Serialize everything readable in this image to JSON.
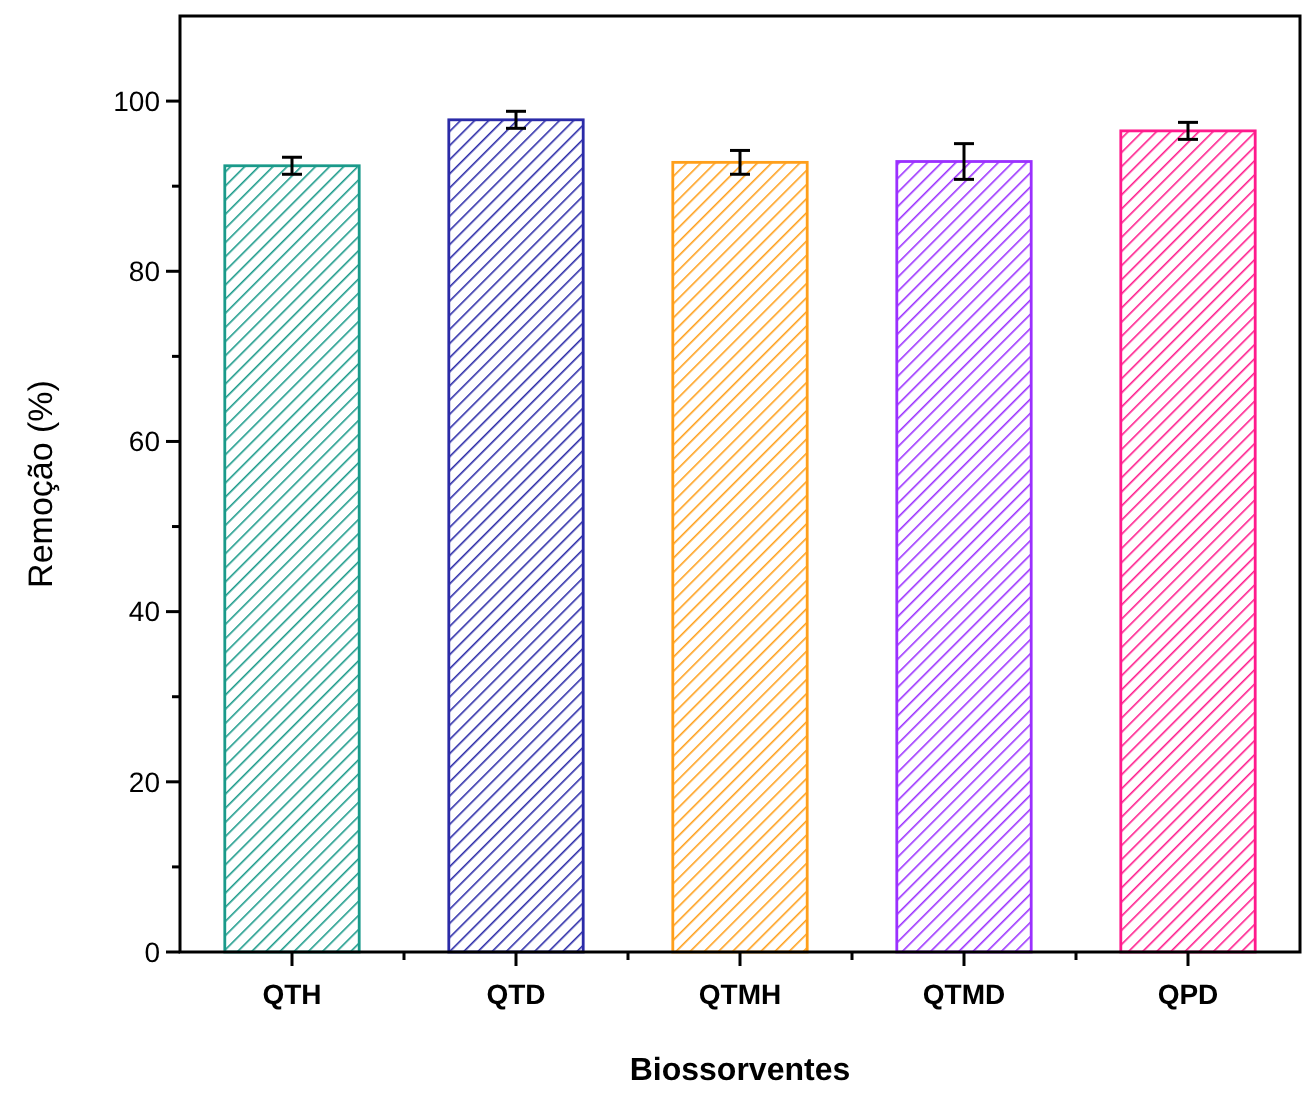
{
  "chart_data": {
    "type": "bar",
    "xlabel": "Biossorventes",
    "ylabel": "Remoção (%)",
    "categories": [
      "QTH",
      "QTD",
      "QTMH",
      "QTMD",
      "QPD"
    ],
    "values": [
      92.4,
      97.8,
      92.8,
      92.9,
      96.5
    ],
    "errors": [
      1.0,
      1.0,
      1.4,
      2.1,
      1.0
    ],
    "colors": [
      "#1a9a8a",
      "#2b2ba8",
      "#ff9f1a",
      "#9b30ff",
      "#ff1a8c"
    ],
    "ylim": [
      0,
      110
    ],
    "yticks": [
      0,
      {
        "value": 10,
        "label": null
      },
      20,
      {
        "value": 30,
        "label": null
      },
      40,
      {
        "value": 50,
        "label": null
      },
      60,
      {
        "value": 70,
        "label": null
      },
      80,
      {
        "value": 90,
        "label": null
      },
      100
    ],
    "grid": false
  }
}
